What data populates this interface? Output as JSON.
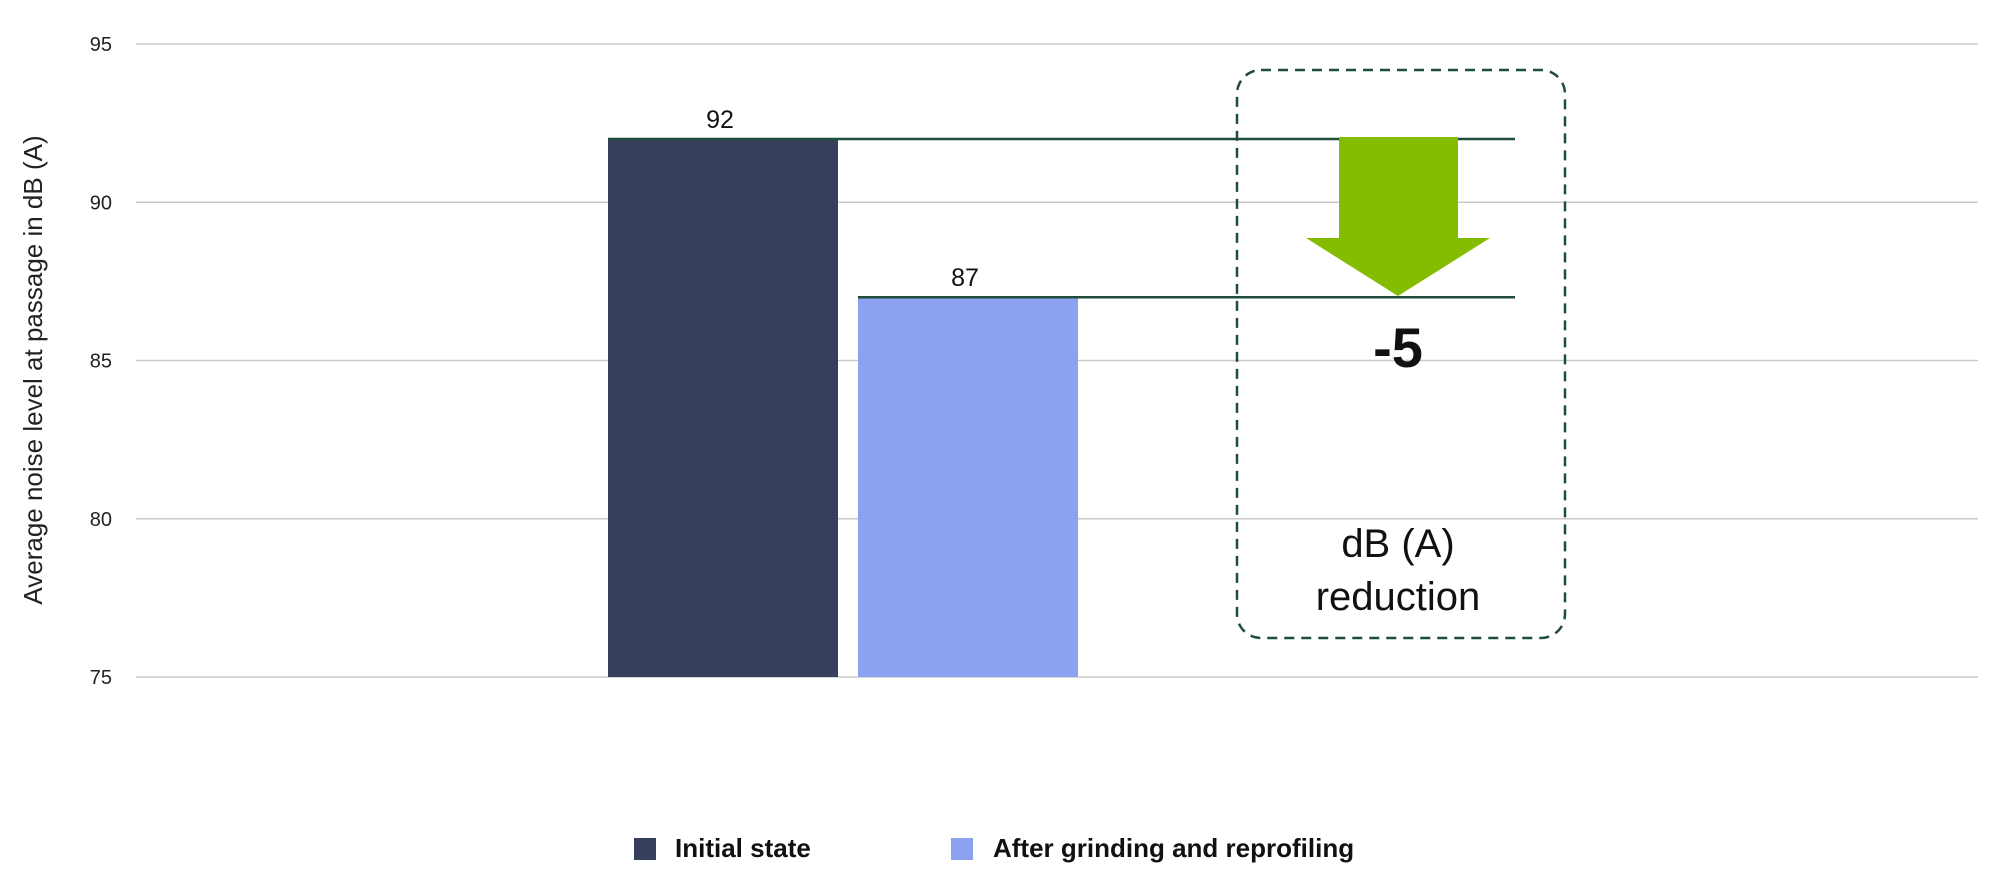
{
  "chart_data": {
    "type": "bar",
    "title": "",
    "xlabel": "",
    "ylabel": "Average noise level at passage in dB (A)",
    "ylim": [
      75,
      95
    ],
    "yticks": [
      75,
      80,
      85,
      90,
      95
    ],
    "grid": true,
    "series": [
      {
        "name": "Initial state",
        "values": [
          92
        ],
        "color": "#363f5c"
      },
      {
        "name": "After grinding and reprofiling",
        "values": [
          87
        ],
        "color": "#8ca1f0"
      }
    ],
    "data_labels": [
      "92",
      "87"
    ],
    "annotation": {
      "delta_label": "-5",
      "unit_line1": "dB (A)",
      "unit_line2": "reduction",
      "arrow_color": "#84bd00",
      "line_color": "#1f4d3a",
      "box_color": "#1f4d3a"
    },
    "legend": {
      "placement": "bottom-center",
      "items": [
        "Initial state",
        "After grinding and reprofiling"
      ]
    }
  }
}
